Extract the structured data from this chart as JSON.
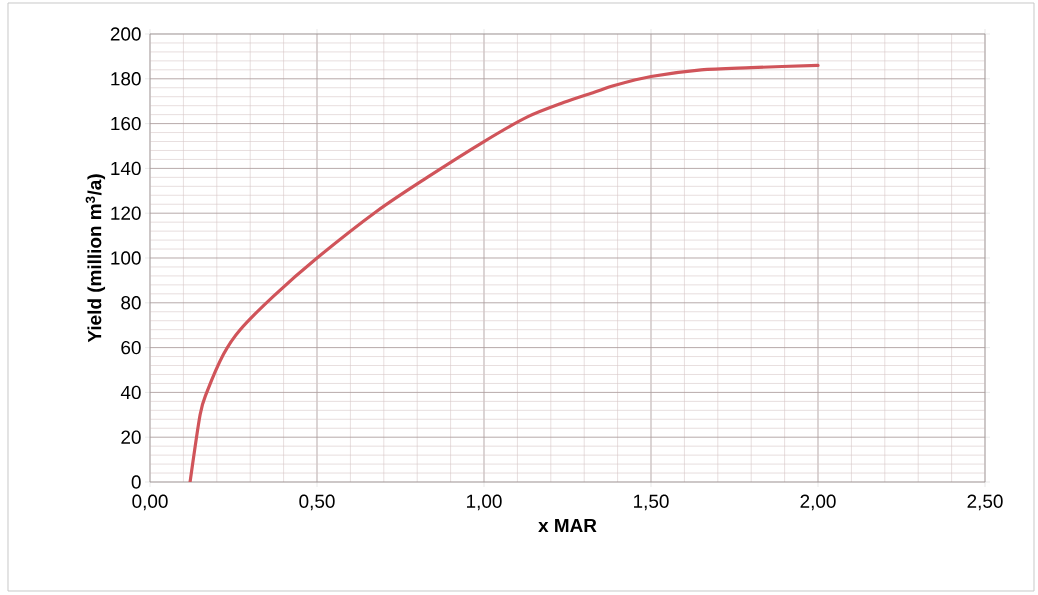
{
  "chart_data": {
    "type": "line",
    "xlabel": "x MAR",
    "ylabel": "Yield (million m$^{3}$/a)",
    "x": [
      0.12,
      0.15,
      0.17,
      0.22,
      0.27,
      0.37,
      0.5,
      0.68,
      0.83,
      1.0,
      1.13,
      1.24,
      1.33,
      1.39,
      1.5,
      1.65,
      1.8,
      2.0
    ],
    "series": [
      {
        "color": "#d0545a",
        "values": [
          0,
          30,
          40,
          57,
          68,
          83,
          100,
          121,
          136,
          152,
          163,
          169.5,
          174,
          177,
          181,
          184,
          185,
          186
        ]
      }
    ],
    "xlim": [
      0,
      2.5
    ],
    "xticks": [
      {
        "value": 0,
        "label": "0,00"
      },
      {
        "value": 0.5,
        "label": "0,50"
      },
      {
        "value": 1,
        "label": "1,00"
      },
      {
        "value": 1.5,
        "label": "1,50"
      },
      {
        "value": 2,
        "label": "2,00"
      },
      {
        "value": 2.5,
        "label": "2,50"
      }
    ],
    "ylim": [
      0,
      200
    ],
    "yticks": [
      0,
      20,
      40,
      60,
      80,
      100,
      120,
      140,
      160,
      180,
      200
    ],
    "grid": true,
    "marker": "none",
    "line_style": "solid"
  }
}
